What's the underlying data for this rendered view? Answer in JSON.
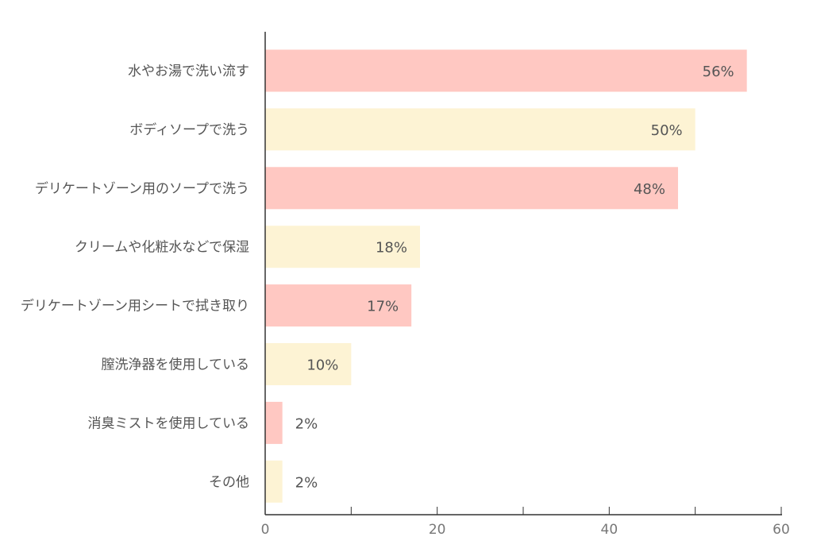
{
  "chart_data": {
    "type": "bar",
    "orientation": "horizontal",
    "categories": [
      "水やお湯で洗い流す",
      "ボディソープで洗う",
      "デリケートゾーン用のソープで洗う",
      "クリームや化粧水などで保湿",
      "デリケートゾーン用シートで拭き取り",
      "膣洗浄器を使用している",
      "消臭ミストを使用している",
      "その他"
    ],
    "values": [
      56,
      50,
      48,
      18,
      17,
      10,
      2,
      2
    ],
    "value_labels": [
      "56%",
      "50%",
      "48%",
      "18%",
      "17%",
      "10%",
      "2%",
      "2%"
    ],
    "bar_colors": [
      "#ffc8c2",
      "#fdf3d4",
      "#ffc8c2",
      "#fdf3d4",
      "#ffc8c2",
      "#fdf3d4",
      "#ffc8c2",
      "#fdf3d4"
    ],
    "xlim": [
      0,
      60
    ],
    "x_ticks": [
      0,
      10,
      20,
      30,
      40,
      50,
      60
    ],
    "x_tick_labels": [
      "0",
      "",
      "20",
      "",
      "40",
      "",
      "60"
    ],
    "title": "",
    "xlabel": "",
    "ylabel": "",
    "grid": false,
    "legend": "none"
  }
}
